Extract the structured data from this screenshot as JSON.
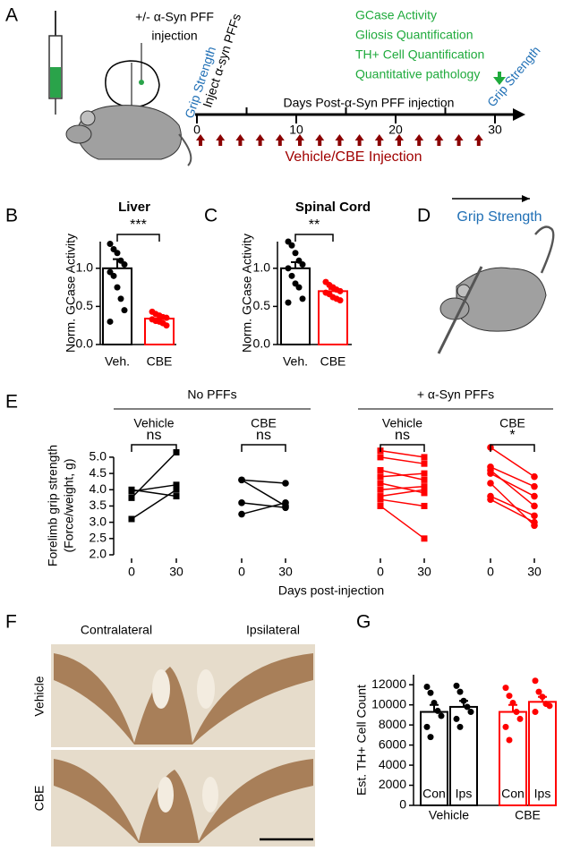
{
  "panel_labels": [
    "A",
    "B",
    "C",
    "D",
    "E",
    "F",
    "G"
  ],
  "panel_a": {
    "injection_label": [
      "+/- α-Syn PFF",
      "injection"
    ],
    "grip_start": "Grip Strength",
    "inject_label": "Inject α-syn PFFs",
    "endpoints": [
      "GCase Activity",
      "Gliosis Quantification",
      "TH+ Cell Quantification",
      "Quantitative pathology"
    ],
    "timeline_title": "Days Post-α-Syn PFF injection",
    "xlim": [
      0,
      30
    ],
    "xticks": [
      0,
      10,
      20,
      30
    ],
    "minor_ticks": [
      5,
      15,
      25
    ],
    "injection_days": [
      0,
      2,
      4,
      6,
      8,
      10,
      12,
      14,
      16,
      18,
      20,
      22,
      24,
      26,
      28
    ],
    "injection_legend": "Vehicle/CBE Injection",
    "grip_end": "Grip Strength"
  },
  "panel_d": {
    "label": "Grip Strength"
  },
  "panel_e": {
    "groups": [
      "No PFFs",
      "+ α-Syn PFFs"
    ],
    "ylabel": [
      "Forelimb grip strength",
      "(Force/weight, g)"
    ],
    "xlabel": "Days post-injection"
  },
  "panel_f": {
    "columns": [
      "Contralateral",
      "Ipsilateral"
    ],
    "rows": [
      "Vehicle",
      "CBE"
    ]
  },
  "chart_data": [
    {
      "type": "bar",
      "title": "Liver",
      "ylabel": "Norm. GCase Activity",
      "categories": [
        "Veh.",
        "CBE"
      ],
      "values": [
        1.0,
        0.34
      ],
      "errors": [
        0.12,
        0.03
      ],
      "colors": [
        "#000000",
        "#ff0000"
      ],
      "points": [
        [
          1.32,
          1.25,
          1.2,
          1.1,
          1.05,
          0.95,
          0.9,
          0.75,
          0.6,
          0.45,
          0.3
        ],
        [
          0.43,
          0.4,
          0.38,
          0.36,
          0.35,
          0.33,
          0.31,
          0.3,
          0.28,
          0.25
        ]
      ],
      "ylim": [
        0,
        1.35
      ],
      "yticks": [
        {
          "value": 0,
          "label": "0.0"
        },
        {
          "value": 0.5,
          "label": "0.5"
        },
        {
          "value": 1,
          "label": "1.0"
        }
      ],
      "significance": "***"
    },
    {
      "type": "bar",
      "title": "Spinal Cord",
      "ylabel": "Norm. GCase Activity",
      "categories": [
        "Veh.",
        "CBE"
      ],
      "values": [
        1.0,
        0.7
      ],
      "errors": [
        0.08,
        0.03
      ],
      "colors": [
        "#000000",
        "#ff0000"
      ],
      "points": [
        [
          1.35,
          1.3,
          1.2,
          1.1,
          1.05,
          1.0,
          0.9,
          0.8,
          0.75,
          0.6,
          0.55
        ],
        [
          0.82,
          0.78,
          0.75,
          0.72,
          0.7,
          0.68,
          0.66,
          0.62,
          0.6,
          0.58
        ]
      ],
      "ylim": [
        0,
        1.35
      ],
      "yticks": [
        {
          "value": 0,
          "label": "0.0"
        },
        {
          "value": 0.5,
          "label": "0.5"
        },
        {
          "value": 1,
          "label": "1.0"
        }
      ],
      "significance": "**"
    },
    {
      "type": "paired",
      "title": "Vehicle",
      "categories": [
        "0",
        "30"
      ],
      "color": "#000000",
      "marker": "square",
      "pairs": [
        [
          3.1,
          4.0
        ],
        [
          3.75,
          5.15
        ],
        [
          4.0,
          3.8
        ],
        [
          3.95,
          4.15
        ]
      ],
      "ylim": [
        2,
        5.3
      ],
      "yticks": [
        {
          "value": 2,
          "label": "2.0"
        },
        {
          "value": 2.5,
          "label": "2.5"
        },
        {
          "value": 3,
          "label": "3.0"
        },
        {
          "value": 3.5,
          "label": "3.5"
        },
        {
          "value": 4,
          "label": "4.0"
        },
        {
          "value": 4.5,
          "label": "4.5"
        },
        {
          "value": 5,
          "label": "5.0"
        }
      ],
      "significance": "ns"
    },
    {
      "type": "paired",
      "title": "CBE",
      "categories": [
        "0",
        "30"
      ],
      "color": "#000000",
      "marker": "circle",
      "pairs": [
        [
          4.3,
          3.5
        ],
        [
          4.3,
          4.2
        ],
        [
          3.6,
          3.45
        ],
        [
          3.25,
          3.6
        ]
      ],
      "ylim": [
        2,
        5.3
      ],
      "significance": "ns"
    },
    {
      "type": "paired",
      "title": "Vehicle",
      "categories": [
        "0",
        "30"
      ],
      "color": "#ff0000",
      "marker": "square",
      "pairs": [
        [
          5.2,
          5.0
        ],
        [
          5.0,
          4.8
        ],
        [
          4.6,
          4.3
        ],
        [
          4.4,
          4.5
        ],
        [
          4.2,
          3.9
        ],
        [
          4.0,
          4.1
        ],
        [
          3.8,
          4.0
        ],
        [
          3.7,
          3.5
        ],
        [
          3.5,
          2.5
        ]
      ],
      "ylim": [
        2,
        5.3
      ],
      "significance": "ns"
    },
    {
      "type": "paired",
      "title": "CBE",
      "categories": [
        "0",
        "30"
      ],
      "color": "#ff0000",
      "marker": "circle",
      "pairs": [
        [
          5.3,
          4.4
        ],
        [
          4.7,
          4.1
        ],
        [
          4.6,
          3.5
        ],
        [
          4.5,
          3.8
        ],
        [
          4.2,
          2.9
        ],
        [
          3.8,
          3.2
        ],
        [
          3.7,
          3.0
        ]
      ],
      "ylim": [
        2,
        5.3
      ],
      "significance": "*"
    },
    {
      "type": "bar",
      "ylabel": "Est. TH+ Cell Count",
      "categories": [
        "Con",
        "Ips",
        "Con",
        "Ips"
      ],
      "groups": [
        "Vehicle",
        "CBE"
      ],
      "values": [
        9300,
        9800,
        9300,
        10300
      ],
      "errors": [
        700,
        600,
        700,
        500
      ],
      "colors": [
        "#000000",
        "#000000",
        "#ff0000",
        "#ff0000"
      ],
      "points": [
        [
          11800,
          11200,
          10200,
          9400,
          8900,
          7800,
          6800
        ],
        [
          11900,
          11300,
          10400,
          9800,
          9300,
          8600,
          7800
        ],
        [
          11700,
          10900,
          10200,
          9300,
          8600,
          7800,
          6500
        ],
        [
          12400,
          11300,
          10800,
          10100,
          9900,
          9300
        ]
      ],
      "ylim": [
        0,
        13000
      ],
      "yticks": [
        0,
        2000,
        4000,
        6000,
        8000,
        10000,
        12000
      ]
    }
  ]
}
